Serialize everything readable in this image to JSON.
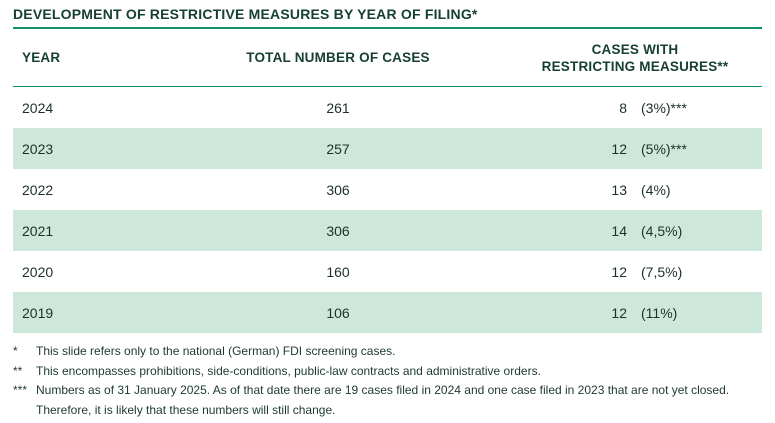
{
  "title": "DEVELOPMENT OF RESTRICTIVE MEASURES BY YEAR OF FILING*",
  "colors": {
    "accent_teal": "#12906a",
    "row_highlight_green": "#cde8db",
    "heading_dark_green": "#17402f",
    "body_text": "#1d3028"
  },
  "table": {
    "headers": {
      "year": "YEAR",
      "total": "TOTAL NUMBER OF CASES",
      "cases_line1": "CASES WITH",
      "cases_line2": "RESTRICTING MEASURES**"
    },
    "rows": [
      {
        "year": "2024",
        "total": "261",
        "measures": "8",
        "percent": "(3%)***",
        "highlight": false
      },
      {
        "year": "2023",
        "total": "257",
        "measures": "12",
        "percent": "(5%)***",
        "highlight": true
      },
      {
        "year": "2022",
        "total": "306",
        "measures": "13",
        "percent": "(4%)",
        "highlight": false
      },
      {
        "year": "2021",
        "total": "306",
        "measures": "14",
        "percent": "(4,5%)",
        "highlight": true
      },
      {
        "year": "2020",
        "total": "160",
        "measures": "12",
        "percent": "(7,5%)",
        "highlight": false
      },
      {
        "year": "2019",
        "total": "106",
        "measures": "12",
        "percent": "(11%)",
        "highlight": true
      }
    ]
  },
  "footnotes": [
    {
      "marker": "*",
      "text": "This slide refers only to the national (German) FDI screening cases."
    },
    {
      "marker": "**",
      "text": "This encompasses prohibitions, side-conditions, public-law contracts and administrative orders."
    },
    {
      "marker": "***",
      "text": "Numbers as of 31 January 2025. As of that date there are 19 cases filed in 2024 and one case filed in 2023 that are not yet closed. Therefore, it is likely that these numbers will still change."
    }
  ]
}
